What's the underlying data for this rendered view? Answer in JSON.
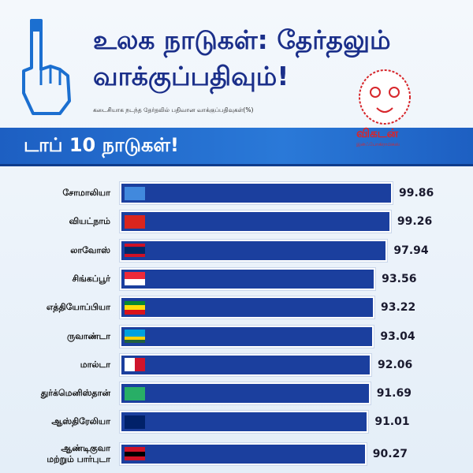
{
  "chart_data": {
    "type": "bar",
    "orientation": "horizontal",
    "title": "உலக நாடுகள்: தேர்தலும்\nவாக்குப்பதிவும்!",
    "subtitle": "கடைசியாக நடந்த தேர்தலில் பதிவான வாக்குப்பதிவுகள்(%)",
    "banner": "டாப் 10 நாடுகள்!",
    "categories": [
      "சோமாலியா",
      "வியட்நாம்",
      "லாவோஸ்",
      "சிங்கப்பூர்",
      "எத்தியோப்பியா",
      "ருவாண்டா",
      "மால்டா",
      "துர்க்மெனிஸ்தான்",
      "ஆஸ்திரேலியா",
      "ஆண்டிகுவா\nமற்றும் பார்புடா"
    ],
    "values": [
      99.86,
      99.26,
      97.94,
      93.56,
      93.22,
      93.04,
      92.06,
      91.69,
      91.01,
      90.27
    ],
    "color": "#1b3f9e"
  },
  "logo": {
    "name": "விகடன்",
    "tagline": "இன்ஃபோகிராபிக்ஸ்"
  }
}
